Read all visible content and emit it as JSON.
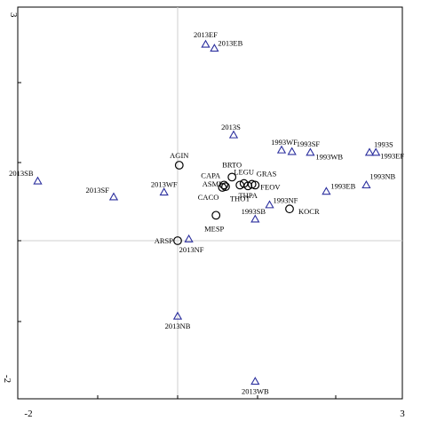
{
  "chart_data": {
    "type": "scatter",
    "title": "",
    "xlabel": "",
    "ylabel": "",
    "xlim": [
      -2,
      3
    ],
    "ylim": [
      -2,
      3
    ],
    "corner_labels": {
      "x_min": "-2",
      "x_max": "3",
      "y_min": "-2",
      "y_max": "3"
    },
    "grid": false,
    "zero_lines": true,
    "colors": {
      "samples": "#2b2f9e",
      "species": "#000000",
      "zero_line": "#cfcfcf"
    },
    "series": [
      {
        "marker": "triangle",
        "points": [
          {
            "label": "2013EF",
            "x": 0.35,
            "y": 2.47
          },
          {
            "label": "2013EB",
            "x": 0.46,
            "y": 2.42
          },
          {
            "label": "2013S",
            "x": 0.7,
            "y": 1.33
          },
          {
            "label": "2013SB",
            "x": -1.75,
            "y": 0.75
          },
          {
            "label": "2013SF",
            "x": -0.8,
            "y": 0.55
          },
          {
            "label": "2013WF",
            "x": -0.17,
            "y": 0.61
          },
          {
            "label": "2013NF",
            "x": 0.14,
            "y": 0.02
          },
          {
            "label": "2013NB",
            "x": 0.0,
            "y": -0.95
          },
          {
            "label": "2013WB",
            "x": 0.97,
            "y": -1.77
          },
          {
            "label": "1993WF",
            "x": 1.3,
            "y": 1.14
          },
          {
            "label": "1993SF",
            "x": 1.43,
            "y": 1.12
          },
          {
            "label": "1993WB",
            "x": 1.66,
            "y": 1.11
          },
          {
            "label": "1993S",
            "x": 2.4,
            "y": 1.11
          },
          {
            "label": "1993EF",
            "x": 2.48,
            "y": 1.11
          },
          {
            "label": "1993NB",
            "x": 2.36,
            "y": 0.7
          },
          {
            "label": "1993EB",
            "x": 1.86,
            "y": 0.62
          },
          {
            "label": "1993NF",
            "x": 1.15,
            "y": 0.45
          },
          {
            "label": "1993SB",
            "x": 0.97,
            "y": 0.27
          }
        ]
      },
      {
        "marker": "circle",
        "points": [
          {
            "label": "AGIN",
            "x": 0.02,
            "y": 0.95
          },
          {
            "label": "BRTO",
            "x": 0.68,
            "y": 0.8
          },
          {
            "label": "CAPA",
            "x": 0.58,
            "y": 0.7
          },
          {
            "label": "LEGU",
            "x": 0.83,
            "y": 0.72
          },
          {
            "label": "GRAS",
            "x": 0.93,
            "y": 0.71
          },
          {
            "label": "FEOV",
            "x": 0.97,
            "y": 0.7
          },
          {
            "label": "ASMI",
            "x": 0.6,
            "y": 0.68
          },
          {
            "label": "CACO",
            "x": 0.56,
            "y": 0.67
          },
          {
            "label": "THOT",
            "x": 0.78,
            "y": 0.7
          },
          {
            "label": "THPA",
            "x": 0.88,
            "y": 0.69
          },
          {
            "label": "KOCR",
            "x": 1.4,
            "y": 0.4
          },
          {
            "label": "MESP",
            "x": 0.48,
            "y": 0.32
          },
          {
            "label": "ARSP",
            "x": 0.0,
            "y": 0.0
          }
        ]
      }
    ]
  }
}
